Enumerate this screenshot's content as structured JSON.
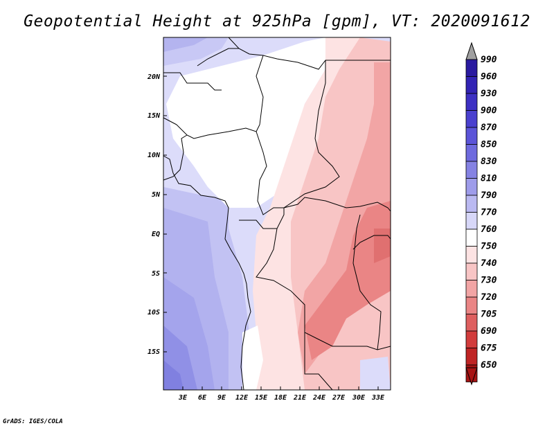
{
  "title": "Geopotential Height at 925hPa [gpm], VT: 2020091612",
  "credit": "GrADS: IGES/COLA",
  "axes": {
    "lat_labels": [
      "20N",
      "15N",
      "10N",
      "5N",
      "EQ",
      "5S",
      "10S",
      "15S"
    ],
    "lon_labels": [
      "3E",
      "6E",
      "9E",
      "12E",
      "15E",
      "18E",
      "21E",
      "24E",
      "27E",
      "30E",
      "33E"
    ]
  },
  "colorbar": {
    "levels": [
      "990",
      "960",
      "930",
      "900",
      "870",
      "850",
      "830",
      "810",
      "790",
      "770",
      "760",
      "750",
      "740",
      "730",
      "720",
      "705",
      "690",
      "675",
      "650"
    ],
    "colors": [
      "#2a1aa0",
      "#3223b4",
      "#3d30c3",
      "#4a40cf",
      "#5b54d8",
      "#6e6ade",
      "#8582e3",
      "#9e9cea",
      "#bab9f1",
      "#d7d7f8",
      "#ffffff",
      "#fde3e3",
      "#f8c5c5",
      "#f2a5a5",
      "#ea8585",
      "#de5f5f",
      "#d23c3c",
      "#bf2424",
      "#a81414"
    ],
    "top_arrow_color": "#a0a0a0",
    "bottom_arrow_color": "#a81414"
  }
}
